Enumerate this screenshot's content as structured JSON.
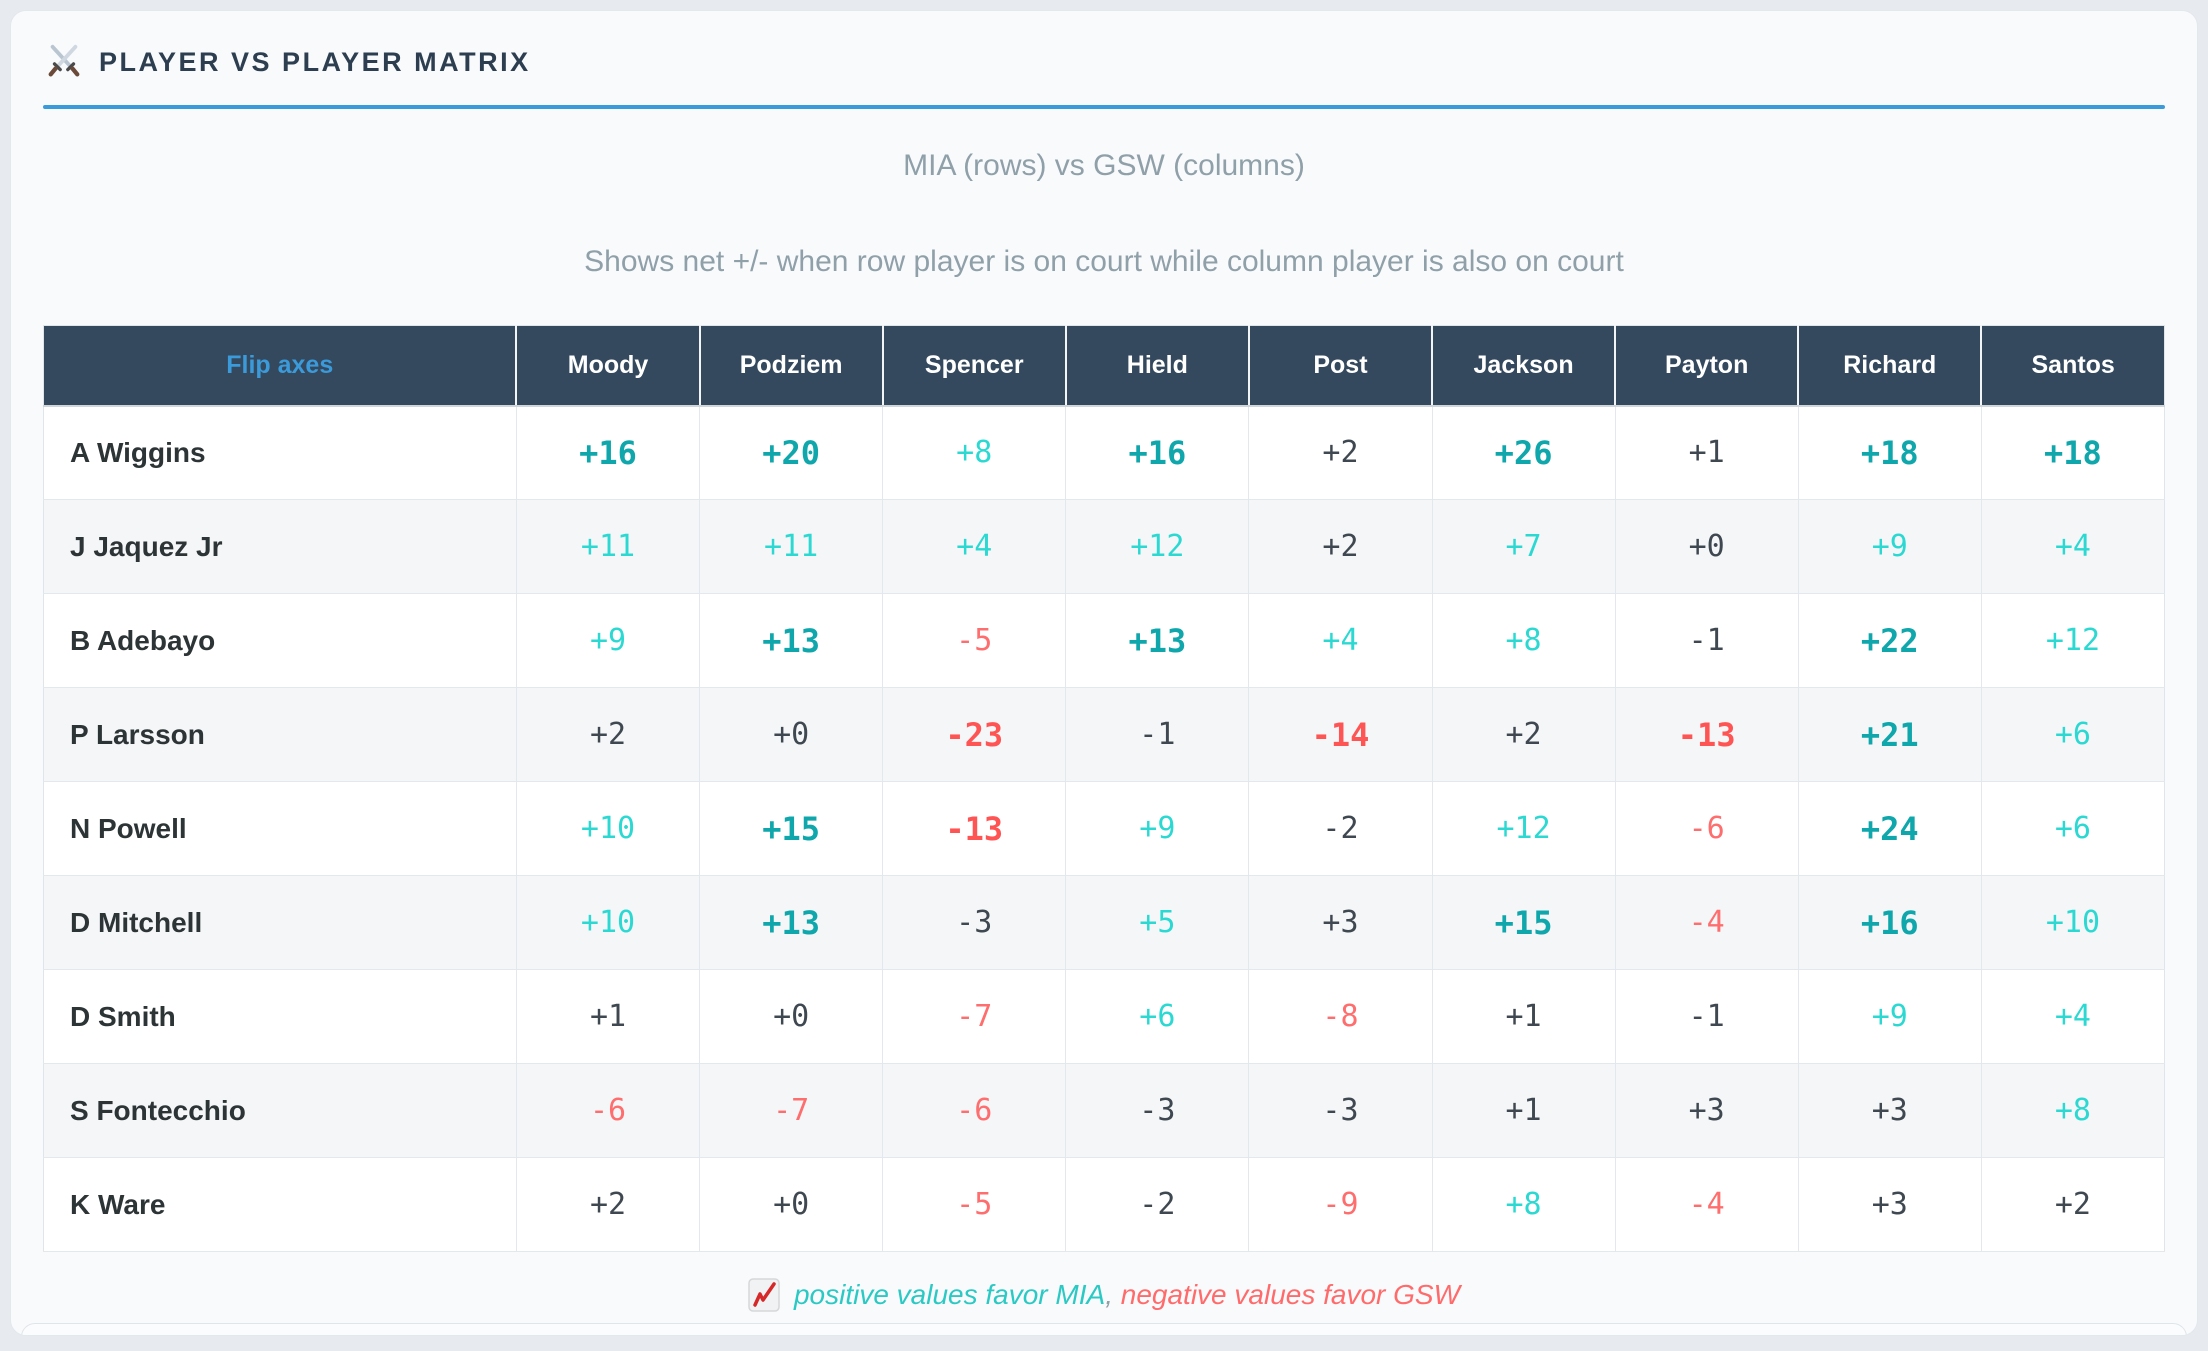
{
  "header": {
    "title": "PLAYER VS PLAYER MATRIX",
    "icon": "crossed-swords-icon"
  },
  "subtitle": "MIA (rows) vs GSW (columns)",
  "description": "Shows net +/- when row player is on court while column player is also on court",
  "matrix": {
    "corner_label": "Flip axes",
    "columns": [
      "Moody",
      "Podziem",
      "Spencer",
      "Hield",
      "Post",
      "Jackson",
      "Payton",
      "Richard",
      "Santos"
    ],
    "rows": [
      {
        "player": "A Wiggins",
        "values": [
          "+16",
          "+20",
          "+8",
          "+16",
          "+2",
          "+26",
          "+1",
          "+18",
          "+18"
        ]
      },
      {
        "player": "J Jaquez Jr",
        "values": [
          "+11",
          "+11",
          "+4",
          "+12",
          "+2",
          "+7",
          "+0",
          "+9",
          "+4"
        ]
      },
      {
        "player": "B Adebayo",
        "values": [
          "+9",
          "+13",
          "-5",
          "+13",
          "+4",
          "+8",
          "-1",
          "+22",
          "+12"
        ]
      },
      {
        "player": "P Larsson",
        "values": [
          "+2",
          "+0",
          "-23",
          "-1",
          "-14",
          "+2",
          "-13",
          "+21",
          "+6"
        ]
      },
      {
        "player": "N Powell",
        "values": [
          "+10",
          "+15",
          "-13",
          "+9",
          "-2",
          "+12",
          "-6",
          "+24",
          "+6"
        ]
      },
      {
        "player": "D Mitchell",
        "values": [
          "+10",
          "+13",
          "-3",
          "+5",
          "+3",
          "+15",
          "-4",
          "+16",
          "+10"
        ]
      },
      {
        "player": "D Smith",
        "values": [
          "+1",
          "+0",
          "-7",
          "+6",
          "-8",
          "+1",
          "-1",
          "+9",
          "+4"
        ]
      },
      {
        "player": "S Fontecchio",
        "values": [
          "-6",
          "-7",
          "-6",
          "-3",
          "-3",
          "+1",
          "+3",
          "+3",
          "+8"
        ]
      },
      {
        "player": "K Ware",
        "values": [
          "+2",
          "+0",
          "-5",
          "-2",
          "-9",
          "+8",
          "-4",
          "+3",
          "+2"
        ]
      }
    ]
  },
  "legend": {
    "icon": "chart-increasing-icon",
    "positive_text": "positive values favor MIA",
    "separator": ",",
    "negative_text": "negative values favor GSW"
  },
  "colors": {
    "accent_blue": "#3a9bdc",
    "header_bg": "#34495e",
    "positive": "#2bd9d2",
    "positive_strong": "#0fa7ab",
    "negative": "#ff6e6e",
    "negative_strong": "#ff5454",
    "neutral": "#3f4850"
  },
  "style_rules": {
    "colored_threshold_abs": 4,
    "strong_threshold_abs": 13
  }
}
